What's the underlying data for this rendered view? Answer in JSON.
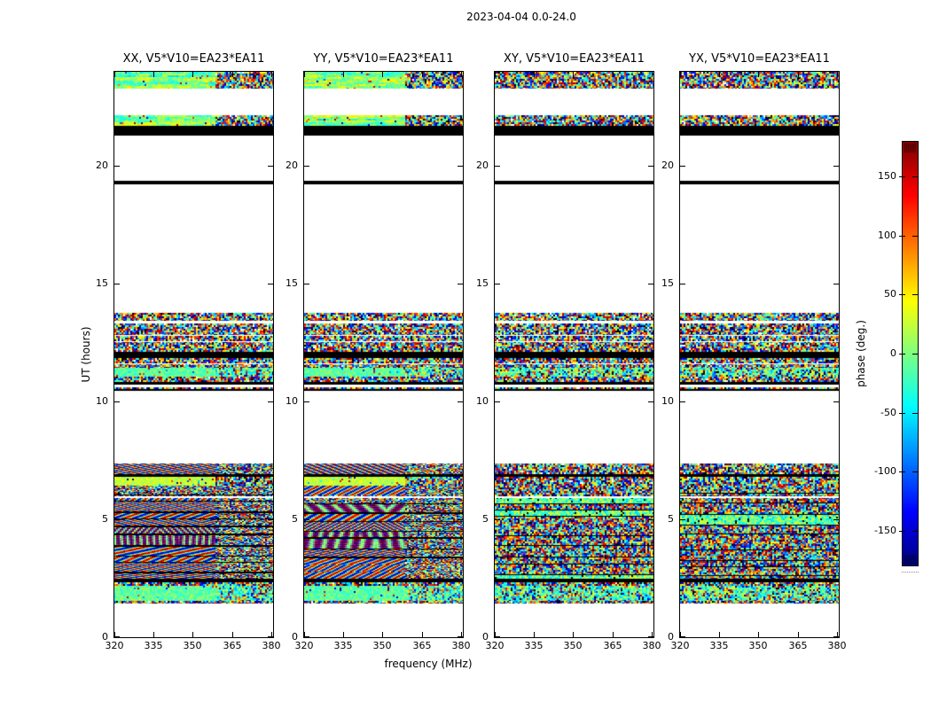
{
  "figure": {
    "title": "2023-04-04 0.0-24.0",
    "background": "#ffffff"
  },
  "panels": [
    {
      "id": "xx",
      "title": "XX, V5*V10=EA23*EA11",
      "style": "fringe"
    },
    {
      "id": "yy",
      "title": "YY, V5*V10=EA23*EA11",
      "style": "fringe"
    },
    {
      "id": "xy",
      "title": "XY, V5*V10=EA23*EA11",
      "style": "noise"
    },
    {
      "id": "yx",
      "title": "YX, V5*V10=EA23*EA11",
      "style": "noise"
    }
  ],
  "axes": {
    "x_label": "frequency (MHz)",
    "y_label": "UT (hours)",
    "x_ticks": [
      320,
      335,
      350,
      365,
      380
    ],
    "y_ticks": [
      0,
      5,
      10,
      15,
      20
    ],
    "x_range": [
      320,
      380.7
    ],
    "y_range": [
      0,
      24
    ]
  },
  "colorbar": {
    "label": "phase (deg.)",
    "ticks": [
      -150,
      -100,
      -50,
      0,
      50,
      100,
      150
    ],
    "range": [
      -180,
      180
    ],
    "colormap": "jet"
  },
  "chart_data": {
    "type": "heatmap",
    "title": "2023-04-04 0.0-24.0",
    "xlabel": "frequency (MHz)",
    "ylabel": "UT (hours)",
    "zlabel": "phase (deg.)",
    "x_range": [
      320,
      380.7
    ],
    "y_range": [
      0,
      24
    ],
    "z_range": [
      -180,
      180
    ],
    "colormap": "jet",
    "legend_position": "right-colorbar",
    "grid": false,
    "panels": [
      "XX, V5*V10=EA23*EA11",
      "YY, V5*V10=EA23*EA11",
      "XY, V5*V10=EA23*EA11",
      "YX, V5*V10=EA23*EA11"
    ],
    "time_bands": [
      {
        "ut": [
          23.3,
          24.0
        ],
        "kind": "streaky",
        "content": "calibrated phase, smooth streaks left / dense noise right"
      },
      {
        "ut": [
          21.7,
          22.16
        ],
        "kind": "streaky",
        "content": "calibrated phase band"
      },
      {
        "ut": [
          21.28,
          21.7
        ],
        "kind": "black",
        "content": "flagged scan (black)"
      },
      {
        "ut": [
          19.23,
          19.38
        ],
        "kind": "black",
        "content": "flagged scan line"
      },
      {
        "ut": [
          13.42,
          13.78
        ],
        "kind": "noise",
        "content": "random phase noise"
      },
      {
        "ut": [
          12.1,
          13.3
        ],
        "kind": "noise",
        "content": "random phase noise"
      },
      {
        "ut": [
          12.8,
          12.84
        ],
        "kind": "white",
        "content": "no data gap"
      },
      {
        "ut": [
          12.53,
          12.57
        ],
        "kind": "white",
        "content": "no data gap"
      },
      {
        "ut": [
          11.85,
          12.1
        ],
        "kind": "black",
        "content": "flagged scan (black)"
      },
      {
        "ut": [
          11.42,
          11.85
        ],
        "kind": "noise",
        "content": "random phase noise"
      },
      {
        "ut": [
          11.6,
          11.64
        ],
        "kind": "white",
        "content": "no data gap"
      },
      {
        "ut": [
          11.05,
          11.42
        ],
        "kind": "cyan",
        "content": "coherent phase ~ -40 deg (cyan band)"
      },
      {
        "ut": [
          10.85,
          11.05
        ],
        "kind": "noise",
        "content": "random phase noise"
      },
      {
        "ut": [
          10.72,
          10.85
        ],
        "kind": "black",
        "content": "flagged scan line"
      },
      {
        "ut": [
          10.55,
          10.62
        ],
        "kind": "noise",
        "content": "thin noise row"
      },
      {
        "ut": [
          10.45,
          10.55
        ],
        "kind": "black",
        "content": "flagged scan line"
      },
      {
        "ut": [
          6.91,
          7.36
        ],
        "kind": "diagfringe",
        "content": "diagonal phase fringes (XX/YY), noise (XY/YX)"
      },
      {
        "ut": [
          6.8,
          6.91
        ],
        "kind": "black",
        "content": "flagged line"
      },
      {
        "ut": [
          6.42,
          6.8
        ],
        "kind": "green",
        "content": "coherent phase ~ 0 deg (green band)"
      },
      {
        "ut": [
          2.5,
          6.42
        ],
        "kind": "fringerows",
        "content": "scan rows with wavy/chevron fringes (XX/YY), dense noise (XY/YX)"
      },
      {
        "ut": [
          5.92,
          5.98
        ],
        "kind": "white",
        "content": "no data gap"
      },
      {
        "ut": [
          2.33,
          2.5
        ],
        "kind": "black",
        "content": "flagged scan (black)"
      },
      {
        "ut": [
          2.18,
          2.33
        ],
        "kind": "noise",
        "content": "random phase noise"
      },
      {
        "ut": [
          1.54,
          2.18
        ],
        "kind": "cyan",
        "content": "coherent phase ~ -40 deg (cyan band)"
      },
      {
        "ut": [
          1.43,
          1.54
        ],
        "kind": "noise",
        "content": "thin noise row"
      }
    ]
  }
}
